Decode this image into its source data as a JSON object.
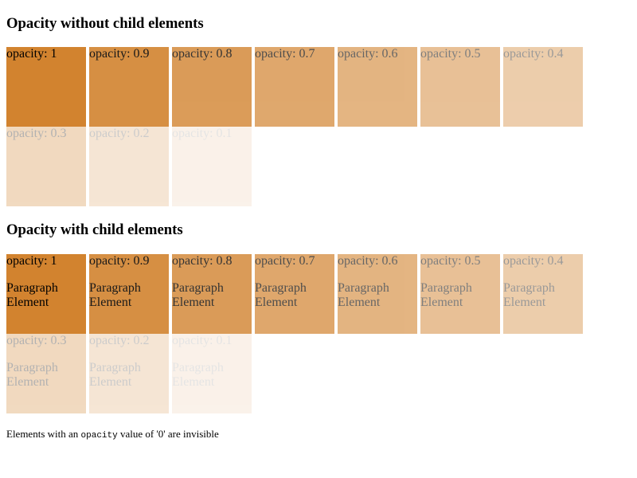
{
  "theme": {
    "box_color": "#d2832f",
    "text_color": "#000000",
    "background": "#ffffff"
  },
  "section_without": {
    "heading": "Opacity without child elements",
    "boxes": [
      {
        "label": "opacity: 1",
        "opacity": 1
      },
      {
        "label": "opacity: 0.9",
        "opacity": 0.9
      },
      {
        "label": "opacity: 0.8",
        "opacity": 0.8
      },
      {
        "label": "opacity: 0.7",
        "opacity": 0.7
      },
      {
        "label": "opacity: 0.6",
        "opacity": 0.6
      },
      {
        "label": "opacity: 0.5",
        "opacity": 0.5
      },
      {
        "label": "opacity: 0.4",
        "opacity": 0.4
      },
      {
        "label": "opacity: 0.3",
        "opacity": 0.3
      },
      {
        "label": "opacity: 0.2",
        "opacity": 0.2
      },
      {
        "label": "opacity: 0.1",
        "opacity": 0.1
      }
    ]
  },
  "section_with": {
    "heading": "Opacity with child elements",
    "child_text": "Paragraph Element",
    "boxes": [
      {
        "label": "opacity: 1",
        "opacity": 1
      },
      {
        "label": "opacity: 0.9",
        "opacity": 0.9
      },
      {
        "label": "opacity: 0.8",
        "opacity": 0.8
      },
      {
        "label": "opacity: 0.7",
        "opacity": 0.7
      },
      {
        "label": "opacity: 0.6",
        "opacity": 0.6
      },
      {
        "label": "opacity: 0.5",
        "opacity": 0.5
      },
      {
        "label": "opacity: 0.4",
        "opacity": 0.4
      },
      {
        "label": "opacity: 0.3",
        "opacity": 0.3
      },
      {
        "label": "opacity: 0.2",
        "opacity": 0.2
      },
      {
        "label": "opacity: 0.1",
        "opacity": 0.1
      }
    ]
  },
  "footnote": {
    "prefix": "Elements with an ",
    "code": "opacity",
    "suffix": " value of '0' are invisible"
  }
}
